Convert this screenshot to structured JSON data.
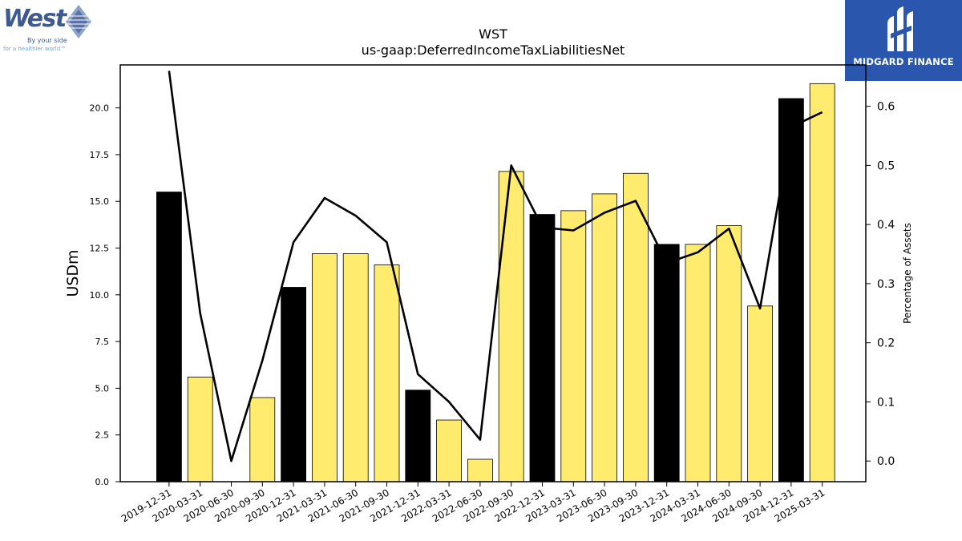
{
  "logos": {
    "left": {
      "name": "West",
      "tagline_1": "By your side",
      "tagline_2": "for a healthier world™"
    },
    "right": {
      "name": "MIDGARD FINANCE",
      "background": "#2a57ad"
    }
  },
  "chart_data": {
    "type": "bar",
    "title": "WST",
    "subtitle": "us-gaap:DeferredIncomeTaxLiabilitiesNet",
    "ylabel": "USDm",
    "y2label": "Percentage of Assets",
    "ylim": [
      0,
      22.3
    ],
    "y2lim": [
      -0.035,
      0.67
    ],
    "yticks": [
      "0.0",
      "2.5",
      "5.0",
      "7.5",
      "10.0",
      "12.5",
      "15.0",
      "17.5",
      "20.0"
    ],
    "y2ticks": [
      "0.0",
      "0.1",
      "0.2",
      "0.3",
      "0.4",
      "0.5",
      "0.6"
    ],
    "categories": [
      "2019-12-31",
      "2020-03-31",
      "2020-06-30",
      "2020-09-30",
      "2020-12-31",
      "2021-03-31",
      "2021-06-30",
      "2021-09-30",
      "2021-12-31",
      "2022-03-31",
      "2022-06-30",
      "2022-09-30",
      "2022-12-31",
      "2023-03-31",
      "2023-06-30",
      "2023-09-30",
      "2023-12-31",
      "2024-03-31",
      "2024-06-30",
      "2024-09-30",
      "2024-12-31",
      "2025-03-31"
    ],
    "series": [
      {
        "type": "bar",
        "values": [
          15.5,
          5.6,
          0.0,
          4.5,
          10.4,
          12.2,
          12.2,
          11.6,
          4.9,
          3.3,
          1.2,
          16.6,
          14.3,
          14.5,
          15.4,
          16.5,
          12.7,
          12.7,
          13.7,
          9.4,
          20.5,
          21.3
        ],
        "colors": [
          "#000000",
          "#ffec6e",
          "#ffec6e",
          "#ffec6e",
          "#000000",
          "#ffec6e",
          "#ffec6e",
          "#ffec6e",
          "#000000",
          "#ffec6e",
          "#ffec6e",
          "#ffec6e",
          "#000000",
          "#ffec6e",
          "#ffec6e",
          "#ffec6e",
          "#000000",
          "#ffec6e",
          "#ffec6e",
          "#ffec6e",
          "#000000",
          "#ffec6e"
        ]
      },
      {
        "type": "line",
        "axis": "right",
        "color": "#000000",
        "values": [
          0.66,
          0.25,
          0.0,
          0.17,
          0.37,
          0.445,
          0.415,
          0.37,
          0.147,
          0.1,
          0.036,
          0.5,
          0.395,
          0.39,
          0.42,
          0.44,
          0.335,
          0.353,
          0.393,
          0.258,
          0.565,
          0.59
        ]
      }
    ],
    "legend": "none",
    "grid": false
  }
}
